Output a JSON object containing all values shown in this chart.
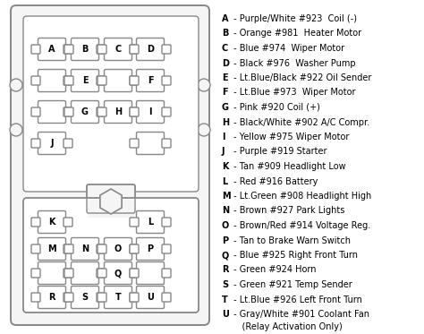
{
  "bg_color": "#ffffff",
  "legend_entries": [
    [
      "A",
      " - Purple/White #923  Coil (-)"
    ],
    [
      "B",
      " - Orange #981  Heater Motor"
    ],
    [
      "C",
      " - Blue #974  Wiper Motor"
    ],
    [
      "D",
      " - Black #976  Washer Pump"
    ],
    [
      "E",
      " - Lt.Blue/Black #922 Oil Sender"
    ],
    [
      "F",
      " - Lt.Blue #973  Wiper Motor"
    ],
    [
      "G",
      " - Pink #920 Coil (+)"
    ],
    [
      "H",
      " - Black/White #902 A/C Compr."
    ],
    [
      "I",
      " - Yellow #975 Wiper Motor"
    ],
    [
      "J",
      " - Purple #919 Starter"
    ],
    [
      "K",
      " - Tan #909 Headlight Low"
    ],
    [
      "L",
      " - Red #916 Battery"
    ],
    [
      "M",
      " - Lt.Green #908 Headlight High"
    ],
    [
      "N",
      " - Brown #927 Park Lights"
    ],
    [
      "O",
      " - Brown/Red #914 Voltage Reg."
    ],
    [
      "P",
      " - Tan to Brake Warn Switch"
    ],
    [
      "Q",
      " - Blue #925 Right Front Turn"
    ],
    [
      "R",
      " - Green #924 Horn"
    ],
    [
      "S",
      " - Green #921 Temp Sender"
    ],
    [
      "T",
      " - Lt.Blue #926 Left Front Turn"
    ],
    [
      "U",
      " - Gray/White #901 Coolant Fan\n    (Relay Activation Only)"
    ]
  ]
}
